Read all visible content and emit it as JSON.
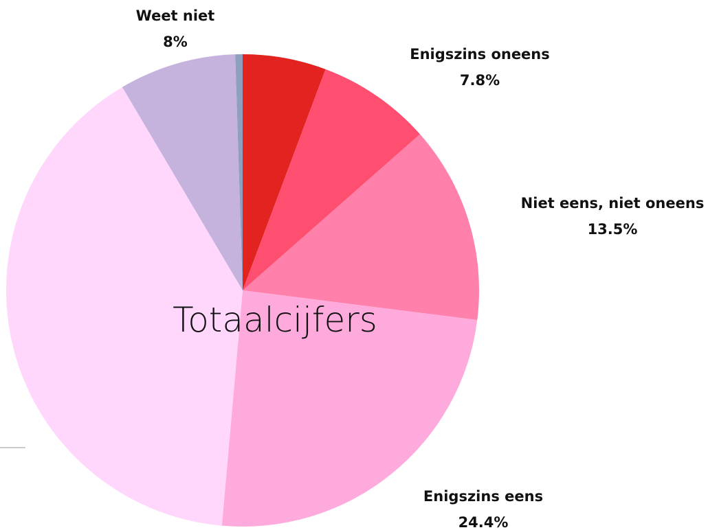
{
  "chart_data": {
    "type": "pie",
    "title": "Totaalcijfers",
    "categories": [
      null,
      "Enigszins oneens",
      "Niet eens, niet oneens",
      "Enigszins eens",
      null,
      "Weet niet",
      null
    ],
    "values": [
      5.7,
      7.8,
      13.5,
      24.4,
      40.1,
      8,
      0.5
    ],
    "value_labels": [
      null,
      "7.8%",
      "13.5%",
      "24.4%",
      null,
      "8%",
      null
    ],
    "colors": [
      "#e3231f",
      "#ff4f70",
      "#ff80ab",
      "#ffaadc",
      "#ffd6fc",
      "#c5b3de",
      "#8e9fc0"
    ]
  }
}
